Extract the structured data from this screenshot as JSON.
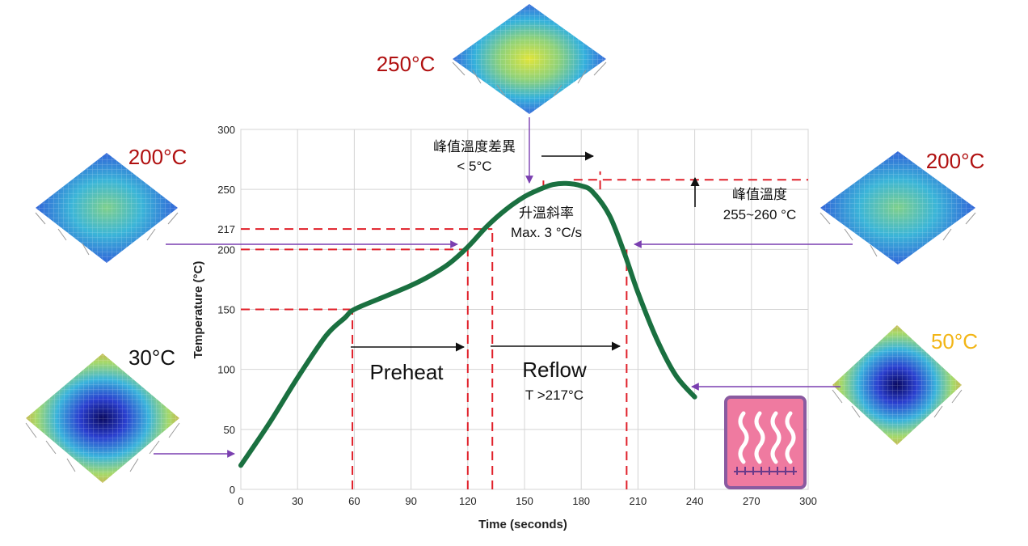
{
  "chart_data": {
    "type": "line",
    "xlabel": "Time (seconds)",
    "ylabel": "Temperature (°C)",
    "xlim": [
      0,
      300
    ],
    "ylim": [
      0,
      300
    ],
    "x_ticks": [
      "0",
      "30",
      "60",
      "90",
      "120",
      "150",
      "180",
      "210",
      "240",
      "270",
      "300"
    ],
    "y_ticks": [
      "0",
      "50",
      "100",
      "150",
      "200",
      "250",
      "300"
    ],
    "extra_y_tick": "217",
    "grid": true,
    "series": [
      {
        "color": "#1a7040",
        "x": [
          0,
          15,
          30,
          45,
          55,
          60,
          75,
          90,
          100,
          110,
          120,
          130,
          140,
          150,
          158,
          165,
          172,
          180,
          186,
          195,
          203,
          210,
          220,
          230,
          240
        ],
        "y": [
          20,
          55,
          93,
          128,
          143,
          150,
          160,
          170,
          178,
          188,
          202,
          219,
          233,
          244,
          250,
          254,
          255,
          253,
          248,
          228,
          196,
          164,
          125,
          95,
          77
        ]
      }
    ],
    "reference_lines": {
      "horizontal": [
        {
          "y": 150,
          "x_from": 0,
          "x_to": 58
        },
        {
          "y": 200,
          "x_from": 0,
          "x_to": 118
        },
        {
          "y": 217,
          "x_from": 0,
          "x_to": 133
        },
        {
          "y": 258,
          "x_from": 176,
          "x_to": 300
        }
      ],
      "vertical": [
        {
          "x": 59,
          "y_from": 0,
          "y_to": 150
        },
        {
          "x": 120,
          "y_from": 0,
          "y_to": 200
        },
        {
          "x": 133,
          "y_from": 0,
          "y_to": 217
        },
        {
          "x": 204,
          "y_from": 0,
          "y_to": 200
        },
        {
          "x": 160,
          "y_from": 250,
          "y_to": 262
        },
        {
          "x": 190,
          "y_from": 250,
          "y_to": 265
        }
      ]
    },
    "annotations": {
      "peak_diff_title": "峰值溫度差異",
      "peak_diff_value": "< 5°C",
      "peak_temp_title": "峰值溫度",
      "peak_temp_value": "255~260 °C",
      "ramp_title": "升溫斜率",
      "ramp_value": "Max. 3 °C/s",
      "preheat": "Preheat",
      "reflow": "Reflow",
      "reflow_cond": "T >217°C"
    },
    "temperature_callouts": {
      "t_30": "30°C",
      "t_200_left": "200°C",
      "t_250": "250°C",
      "t_200_right": "200°C",
      "t_50": "50°C"
    }
  },
  "colors": {
    "curve": "#1a7040",
    "reference": "#e0202a",
    "callout_arrow": "#7a3fb0",
    "hot_label": "#b01010",
    "cool_label": "#f2b515",
    "heater_fill": "#ef7aa0",
    "heater_border": "#8a5aa0"
  },
  "icons": {
    "heater": "heater-icon",
    "chip_maps": "warpage-map-icon"
  }
}
